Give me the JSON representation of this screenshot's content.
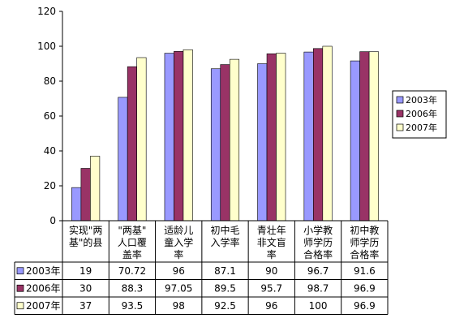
{
  "chart_data": {
    "type": "bar",
    "categories": [
      [
        "实现\"两",
        "基\"的县"
      ],
      [
        "\"两基\"",
        "人口覆",
        "盖率"
      ],
      [
        "适龄儿",
        "童入学",
        "率"
      ],
      [
        "初中毛",
        "入学率"
      ],
      [
        "青壮年",
        "非文盲",
        "率"
      ],
      [
        "小学教",
        "师学历",
        "合格率"
      ],
      [
        "初中教",
        "师学历",
        "合格率"
      ]
    ],
    "series": [
      {
        "name": "2003年",
        "color": "#9999ff",
        "values": [
          19,
          70.72,
          96,
          87.1,
          90,
          96.7,
          91.6
        ],
        "labels": [
          "19",
          "70.72",
          "96",
          "87.1",
          "90",
          "96.7",
          "91.6"
        ]
      },
      {
        "name": "2006年",
        "color": "#993366",
        "values": [
          30,
          88.3,
          97.05,
          89.5,
          95.7,
          98.7,
          96.9
        ],
        "labels": [
          "30",
          "88.3",
          "97.05",
          "89.5",
          "95.7",
          "98.7",
          "96.9"
        ]
      },
      {
        "name": "2007年",
        "color": "#ffffcc",
        "values": [
          37,
          93.5,
          98,
          92.5,
          96,
          100,
          96.9
        ],
        "labels": [
          "37",
          "93.5",
          "98",
          "92.5",
          "96",
          "100",
          "96.9"
        ]
      }
    ],
    "ylim": [
      0,
      120
    ],
    "yticks": [
      "0",
      "20",
      "40",
      "60",
      "80",
      "100",
      "120"
    ],
    "grid": false,
    "legend": "right",
    "data_table": true
  }
}
